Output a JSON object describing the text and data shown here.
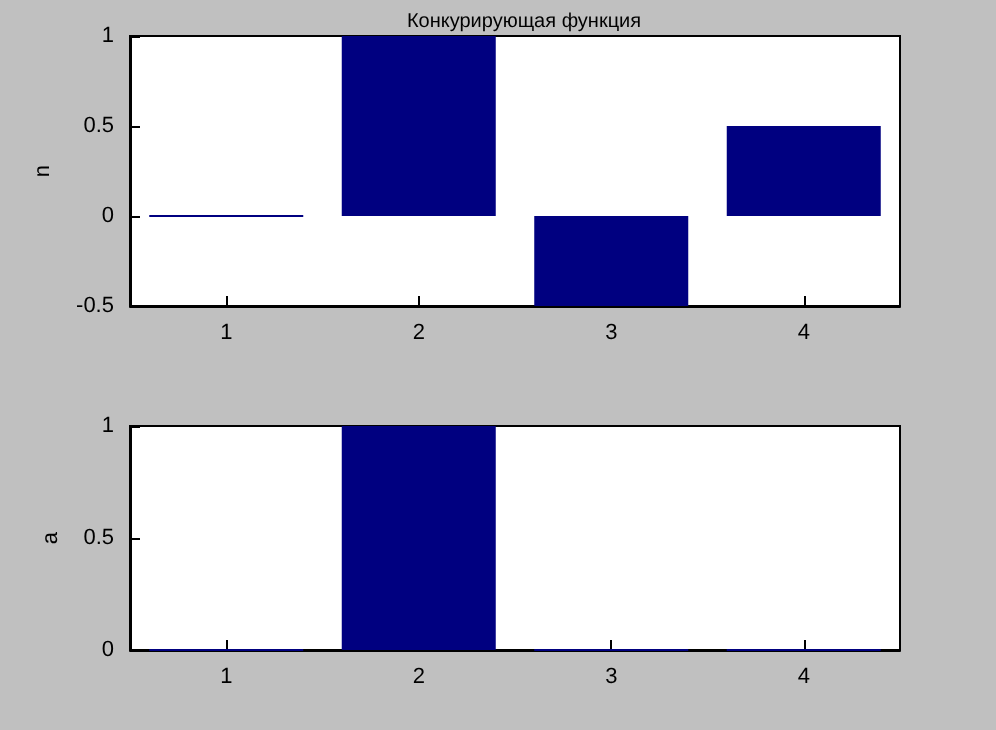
{
  "chart_data": [
    {
      "type": "bar",
      "title": "Конкурирующая функция",
      "ylabel": "n",
      "categories": [
        "1",
        "2",
        "3",
        "4"
      ],
      "values": [
        0,
        1,
        -0.5,
        0.5
      ],
      "color": "#000080",
      "ylim": [
        -0.5,
        1
      ],
      "yticks": [
        -0.5,
        0,
        0.5,
        1
      ]
    },
    {
      "type": "bar",
      "ylabel": "a",
      "categories": [
        "1",
        "2",
        "3",
        "4"
      ],
      "values": [
        0,
        1,
        0,
        0
      ],
      "color": "#000080",
      "ylim": [
        0,
        1
      ],
      "yticks": [
        0,
        0.5,
        1
      ]
    }
  ]
}
